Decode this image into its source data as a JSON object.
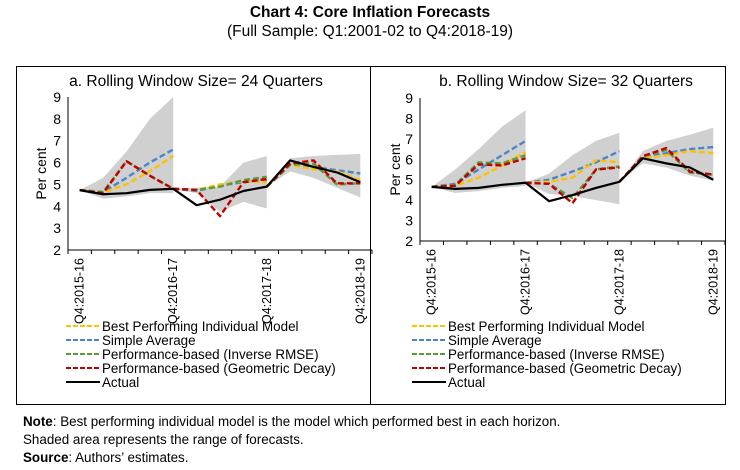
{
  "title": "Chart 4: Core Inflation Forecasts",
  "subtitle": "(Full Sample: Q1:2001-02 to Q4:2018-19)",
  "notes": {
    "note_label": "Note",
    "note_text": ": Best performing individual model is the model which performed best in each horizon.",
    "note_text2": "Shaded area represents the range of forecasts.",
    "source_label": "Source",
    "source_text": ": Authors’ estimates."
  },
  "colors": {
    "best": "#ffc000",
    "simple": "#4a86c8",
    "rmse": "#5b9b3a",
    "geo": "#c00000",
    "actual": "#000000",
    "range": "#d0d0d0"
  },
  "chart_data": [
    {
      "type": "line",
      "title": "a. Rolling Window Size= 24 Quarters",
      "ylabel": "Per cent",
      "ylim": [
        2,
        9
      ],
      "yticks": [
        "2",
        "3",
        "4",
        "5",
        "6",
        "7",
        "8",
        "9"
      ],
      "xtick_labels": [
        "Q4:2015-16",
        "Q4:2016-17",
        "Q4:2017-18",
        "Q4:2018-19"
      ],
      "xtick_label_index": [
        0,
        4,
        8,
        12
      ],
      "n_points": 13,
      "grid": false,
      "legend": "bottom",
      "series": [
        {
          "key": "actual",
          "name": "Actual",
          "segments": [
            [
              0,
              [
                4.74,
                4.55,
                4.6,
                4.75,
                4.8,
                4.05,
                4.3,
                4.7,
                4.9,
                6.1,
                5.8,
                5.55,
                5.1
              ]
            ]
          ]
        },
        {
          "key": "best",
          "name": "Best Performing Individual Model",
          "segments": [
            [
              0,
              [
                4.74,
                4.62,
                5.0,
                5.6,
                6.3
              ]
            ],
            [
              4,
              [
                4.8,
                4.75,
                5.0,
                5.15,
                5.1
              ]
            ],
            [
              8,
              [
                4.9,
                5.9,
                5.7,
                5.6,
                5.2
              ]
            ]
          ]
        },
        {
          "key": "simple",
          "name": "Simple Average",
          "segments": [
            [
              0,
              [
                4.74,
                4.65,
                5.3,
                6.0,
                6.6
              ]
            ],
            [
              4,
              [
                4.8,
                4.7,
                4.95,
                5.1,
                5.2
              ]
            ],
            [
              8,
              [
                4.9,
                5.9,
                5.8,
                5.65,
                5.5
              ]
            ]
          ]
        },
        {
          "key": "rmse",
          "name": "Performance-based (Inverse RMSE)",
          "segments": [
            [
              0,
              [
                4.74,
                4.65,
                6.06,
                5.4,
                4.8
              ]
            ],
            [
              4,
              [
                4.8,
                4.75,
                4.9,
                5.2,
                5.35
              ]
            ],
            [
              8,
              [
                4.9,
                5.9,
                5.95,
                5.0,
                5.05
              ]
            ]
          ]
        },
        {
          "key": "geo",
          "name": "Performance-based (Geometric Decay)",
          "segments": [
            [
              0,
              [
                4.74,
                4.6,
                6.06,
                5.4,
                4.8
              ]
            ],
            [
              4,
              [
                4.8,
                4.75,
                3.55,
                5.1,
                5.25
              ]
            ],
            [
              8,
              [
                4.9,
                5.95,
                6.1,
                5.05,
                5.05
              ]
            ]
          ]
        }
      ],
      "range": [
        {
          "start": 0,
          "upper": [
            4.74,
            5.3,
            6.5,
            8.0,
            9.0
          ],
          "lower": [
            4.74,
            4.35,
            4.45,
            4.6,
            4.6
          ]
        },
        {
          "start": 4,
          "upper": [
            4.8,
            4.85,
            4.9,
            6.0,
            6.3
          ],
          "lower": [
            4.8,
            4.6,
            3.75,
            4.2,
            3.9
          ]
        },
        {
          "start": 8,
          "upper": [
            4.9,
            6.2,
            6.3,
            6.35,
            6.4
          ],
          "lower": [
            4.9,
            5.6,
            5.3,
            4.85,
            4.4
          ]
        }
      ]
    },
    {
      "type": "line",
      "title": "b. Rolling Window Size= 32 Quarters",
      "ylabel": "Per cent",
      "ylim": [
        2,
        9
      ],
      "yticks": [
        "2",
        "3",
        "4",
        "5",
        "6",
        "7",
        "8",
        "9"
      ],
      "xtick_labels": [
        "Q4:2015-16",
        "Q4:2016-17",
        "Q4:2017-18",
        "Q4:2018-19"
      ],
      "xtick_label_index": [
        0,
        4,
        8,
        12
      ],
      "n_points": 13,
      "grid": false,
      "legend": "bottom",
      "series": [
        {
          "key": "actual",
          "name": "Actual",
          "segments": [
            [
              0,
              [
                4.65,
                4.55,
                4.6,
                4.75,
                4.85,
                3.95,
                4.25,
                4.6,
                4.9,
                6.05,
                5.8,
                5.6,
                5.0
              ]
            ]
          ]
        },
        {
          "key": "best",
          "name": "Best Performing Individual Model",
          "segments": [
            [
              0,
              [
                4.65,
                4.7,
                5.1,
                5.7,
                6.35
              ]
            ],
            [
              4,
              [
                4.85,
                4.9,
                5.1,
                5.95,
                5.85
              ]
            ],
            [
              8,
              [
                4.9,
                6.05,
                6.2,
                6.4,
                6.3
              ]
            ]
          ]
        },
        {
          "key": "simple",
          "name": "Simple Average",
          "segments": [
            [
              0,
              [
                4.65,
                4.8,
                5.5,
                6.2,
                6.9
              ]
            ],
            [
              4,
              [
                4.85,
                5.0,
                5.4,
                5.85,
                6.4
              ]
            ],
            [
              8,
              [
                4.9,
                6.1,
                6.3,
                6.5,
                6.6
              ]
            ]
          ]
        },
        {
          "key": "rmse",
          "name": "Performance-based (Inverse RMSE)",
          "segments": [
            [
              0,
              [
                4.65,
                4.75,
                5.85,
                5.8,
                6.2
              ]
            ],
            [
              4,
              [
                4.85,
                4.8,
                4.1,
                5.5,
                5.65
              ]
            ],
            [
              8,
              [
                4.9,
                6.15,
                6.45,
                5.35,
                5.25
              ]
            ]
          ]
        },
        {
          "key": "geo",
          "name": "Performance-based (Geometric Decay)",
          "segments": [
            [
              0,
              [
                4.65,
                4.7,
                5.75,
                5.7,
                6.05
              ]
            ],
            [
              4,
              [
                4.85,
                4.8,
                3.85,
                5.5,
                5.6
              ]
            ],
            [
              8,
              [
                4.9,
                6.15,
                6.55,
                5.4,
                5.25
              ]
            ]
          ]
        }
      ],
      "range": [
        {
          "start": 0,
          "upper": [
            4.65,
            5.5,
            6.5,
            7.6,
            8.4
          ],
          "lower": [
            4.65,
            4.35,
            4.45,
            4.6,
            4.7
          ]
        },
        {
          "start": 4,
          "upper": [
            4.85,
            5.3,
            6.2,
            6.9,
            7.3
          ],
          "lower": [
            4.85,
            4.3,
            4.2,
            4.0,
            3.8
          ]
        },
        {
          "start": 8,
          "upper": [
            4.9,
            6.4,
            6.9,
            7.2,
            7.55
          ],
          "lower": [
            4.9,
            5.8,
            5.6,
            5.2,
            4.95
          ]
        }
      ]
    }
  ]
}
